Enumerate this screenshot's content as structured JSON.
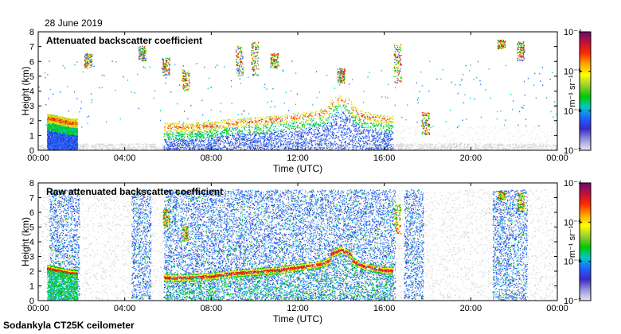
{
  "date_label": "28 June 2019",
  "footer_label": "Sodankyla CT25K ceilometer",
  "colorbar": {
    "unit_label": "m⁻¹ sr⁻¹",
    "tick_labels": [
      "10⁻⁴",
      "10⁻⁵",
      "10⁻⁶",
      "10⁻⁷"
    ],
    "colors": [
      "#6a0d6a",
      "#c0103a",
      "#ff2a00",
      "#ffa500",
      "#ffff00",
      "#9acd32",
      "#00c800",
      "#00c8c8",
      "#1e64ff",
      "#3c28c8",
      "#9696dc",
      "#e6e6f5"
    ]
  },
  "chart_data": [
    {
      "type": "heatmap",
      "title": "Attenuated backscatter coefficient",
      "xlabel": "Time (UTC)",
      "ylabel": "Height (km)",
      "x_ticks": [
        "00:00",
        "04:00",
        "08:00",
        "12:00",
        "16:00",
        "20:00",
        "00:00"
      ],
      "y_ticks": [
        "0",
        "1",
        "2",
        "3",
        "4",
        "5",
        "6",
        "7",
        "8"
      ],
      "xlim_hours": [
        0,
        24
      ],
      "ylim_km": [
        0,
        8
      ],
      "color_scale": "log",
      "color_range": [
        1e-07,
        0.0001
      ],
      "layer_height_km": [
        {
          "time_h": 0.5,
          "height": 2.1
        },
        {
          "time_h": 1.5,
          "height": 1.8
        },
        {
          "time_h": 6.0,
          "height": 1.5
        },
        {
          "time_h": 7.0,
          "height": 1.5
        },
        {
          "time_h": 8.0,
          "height": 1.6
        },
        {
          "time_h": 9.0,
          "height": 1.8
        },
        {
          "time_h": 10.0,
          "height": 1.9
        },
        {
          "time_h": 11.0,
          "height": 2.0
        },
        {
          "time_h": 12.0,
          "height": 2.2
        },
        {
          "time_h": 13.0,
          "height": 2.4
        },
        {
          "time_h": 14.0,
          "height": 3.0
        },
        {
          "time_h": 15.0,
          "height": 2.3
        },
        {
          "time_h": 16.0,
          "height": 2.0
        }
      ]
    },
    {
      "type": "heatmap",
      "title": "Raw attenuated backscatter coefficient",
      "xlabel": "Time (UTC)",
      "ylabel": "Height (km)",
      "x_ticks": [
        "00:00",
        "04:00",
        "08:00",
        "12:00",
        "16:00",
        "20:00",
        "00:00"
      ],
      "y_ticks": [
        "0",
        "1",
        "2",
        "3",
        "4",
        "5",
        "6",
        "7",
        "8"
      ],
      "xlim_hours": [
        0,
        24
      ],
      "ylim_km": [
        0,
        8
      ],
      "color_scale": "log",
      "color_range": [
        1e-07,
        0.0001
      ]
    }
  ]
}
